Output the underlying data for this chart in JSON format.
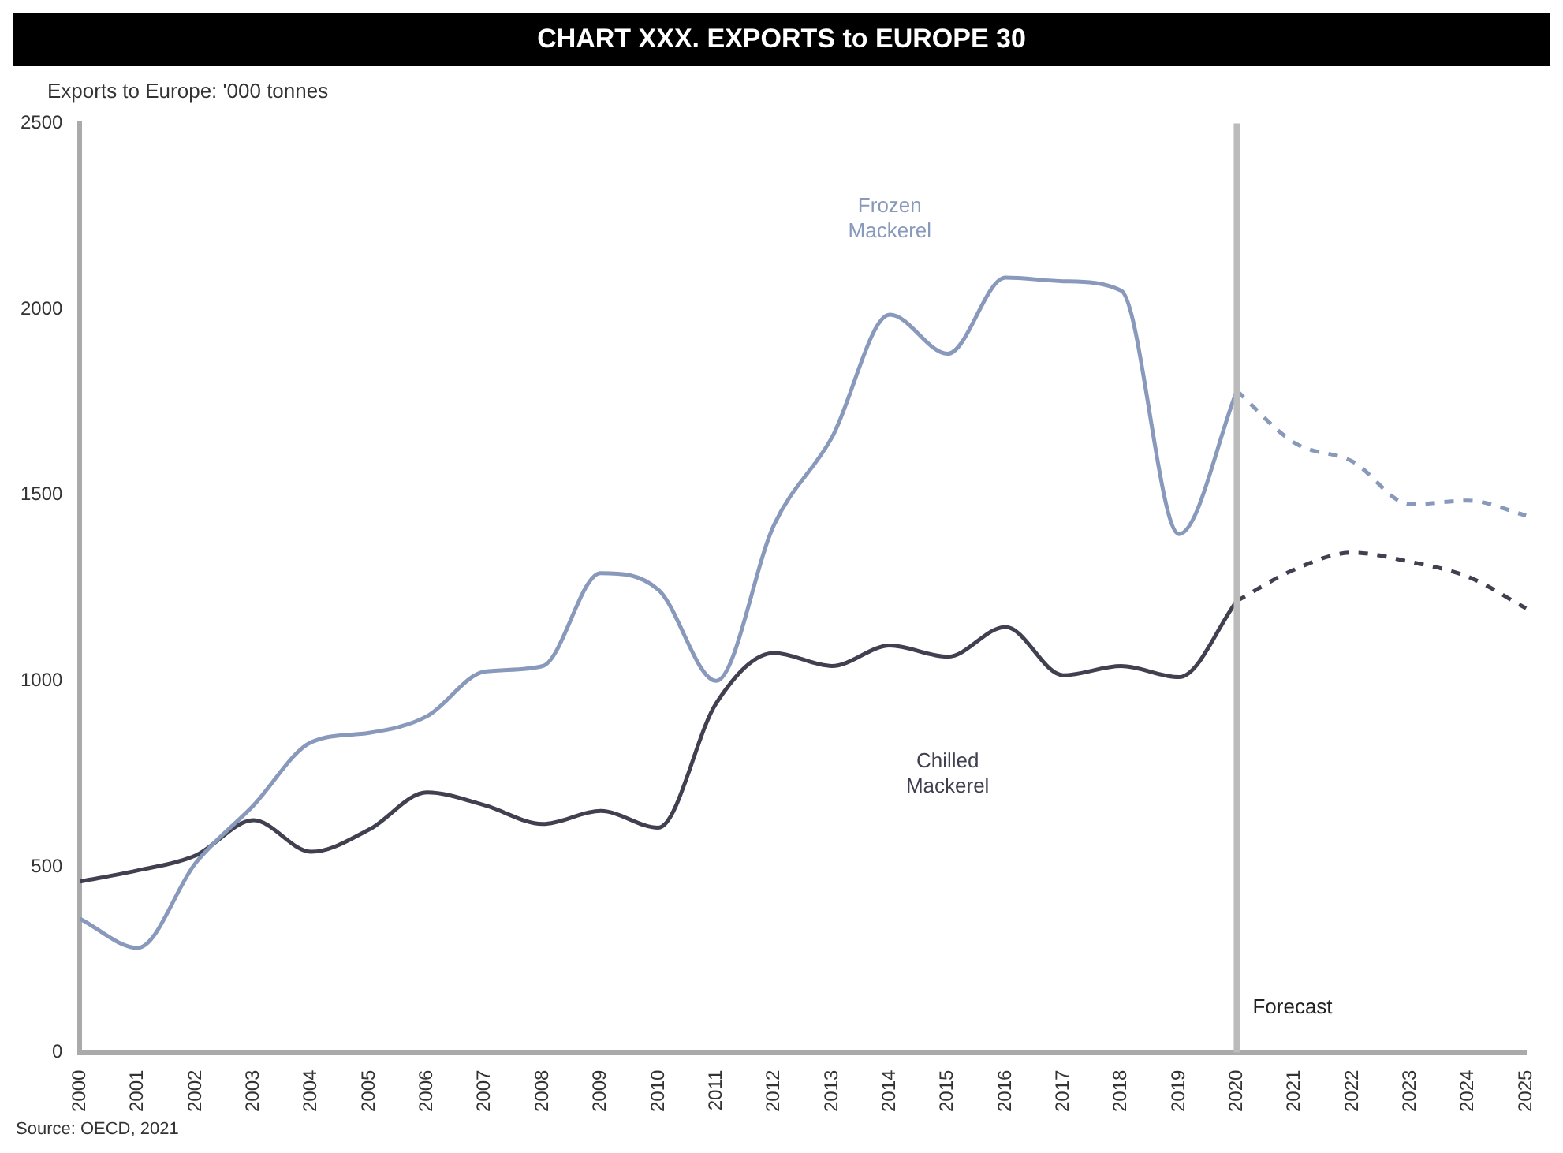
{
  "chart_data": {
    "type": "line",
    "title": "CHART XXX. EXPORTS to EUROPE 30",
    "subtitle": "Exports to Europe: '000 tonnes",
    "categories": [
      "2000",
      "2001",
      "2002",
      "2003",
      "2004",
      "2005",
      "2006",
      "2007",
      "2008",
      "2009",
      "2010",
      "2011",
      "2012",
      "2013",
      "2014",
      "2015",
      "2016",
      "2017",
      "2018",
      "2019",
      "2020",
      "2021",
      "2022",
      "2023",
      "2024",
      "2025"
    ],
    "series": [
      {
        "name": "Frozen Mackerel",
        "color": "#8899bb",
        "values": [
          360,
          282,
          510,
          665,
          835,
          860,
          905,
          1025,
          1040,
          1290,
          1245,
          1000,
          1420,
          1655,
          1985,
          1880,
          2085,
          2075,
          2050,
          1395,
          1780,
          null,
          null,
          null,
          null,
          null
        ]
      },
      {
        "name": "Chilled Mackerel",
        "color": "#404050",
        "values": [
          460,
          490,
          530,
          625,
          540,
          600,
          700,
          665,
          615,
          650,
          605,
          940,
          1075,
          1040,
          1095,
          1065,
          1145,
          1015,
          1040,
          1010,
          1215,
          null,
          null,
          null,
          null,
          null
        ]
      },
      {
        "color": "#8899bb",
        "line_style": "dashed",
        "values": [
          null,
          null,
          null,
          null,
          null,
          null,
          null,
          null,
          null,
          null,
          null,
          null,
          null,
          null,
          null,
          null,
          null,
          null,
          null,
          null,
          1780,
          1640,
          1590,
          1475,
          1485,
          1445
        ]
      },
      {
        "color": "#404050",
        "line_style": "dashed",
        "values": [
          null,
          null,
          null,
          null,
          null,
          null,
          null,
          null,
          null,
          null,
          null,
          null,
          null,
          null,
          null,
          null,
          null,
          null,
          null,
          null,
          1215,
          1300,
          1345,
          1320,
          1280,
          1195
        ]
      }
    ],
    "ylim": [
      0,
      2500
    ],
    "yticks": [
      0,
      500,
      1000,
      1500,
      2000,
      2500
    ],
    "grid": false,
    "legend": false,
    "marker": "none",
    "line_style": "solid",
    "ref_lines": [
      {
        "axis": "x",
        "value": "2020",
        "label": "Forecast",
        "color": "#bbbbbb"
      }
    ],
    "annotations": [
      "Source: OECD, 2021"
    ]
  }
}
